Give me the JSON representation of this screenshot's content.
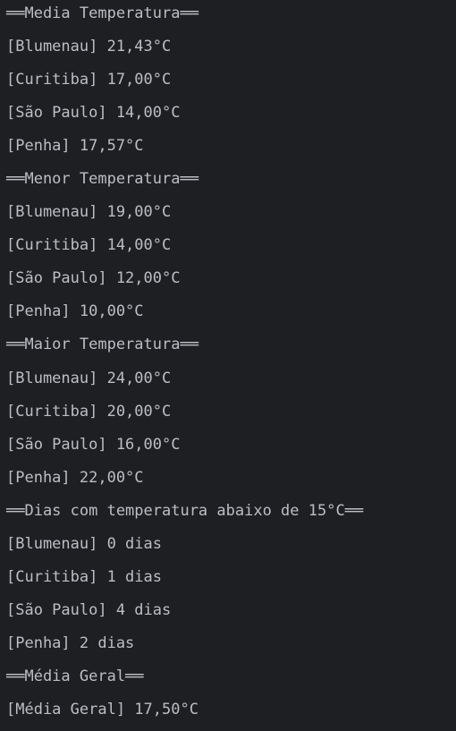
{
  "console": {
    "lines": [
      "══Media Temperatura══",
      "[Blumenau] 21,43°C",
      "[Curitiba] 17,00°C",
      "[São Paulo] 14,00°C",
      "[Penha] 17,57°C",
      "══Menor Temperatura══",
      "[Blumenau] 19,00°C",
      "[Curitiba] 14,00°C",
      "[São Paulo] 12,00°C",
      "[Penha] 10,00°C",
      "══Maior Temperatura══",
      "[Blumenau] 24,00°C",
      "[Curitiba] 20,00°C",
      "[São Paulo] 16,00°C",
      "[Penha] 22,00°C",
      "══Dias com temperatura abaixo de 15°C══",
      "[Blumenau] 0 dias",
      "[Curitiba] 1 dias",
      "[São Paulo] 4 dias",
      "[Penha] 2 dias",
      "══Média Geral══",
      "[Média Geral] 17,50°C"
    ]
  }
}
